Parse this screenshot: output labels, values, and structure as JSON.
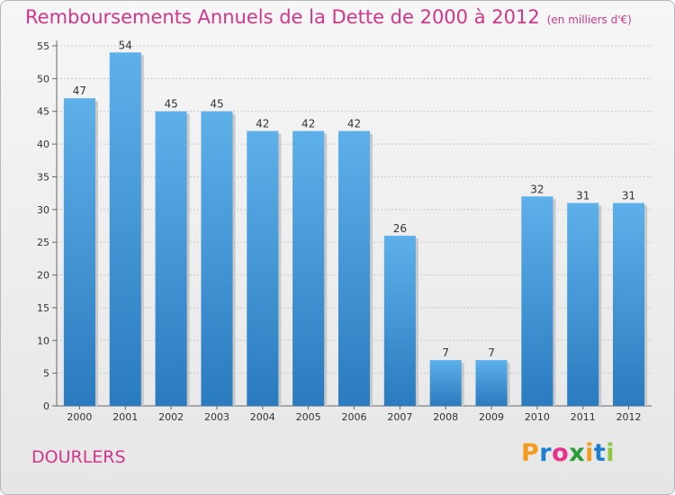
{
  "header": {
    "title": "Remboursements Annuels de la Dette de 2000 à 2012",
    "unit": "(en milliers d'€)"
  },
  "footer": {
    "commune": "DOURLERS",
    "logo_text": "Proxiti"
  },
  "colors": {
    "title": "#d0368c",
    "bar_light": "#5eb0ea",
    "bar_dark": "#2a7bbf",
    "logo": [
      "#f39b1c",
      "#1e7fd0",
      "#e8318a",
      "#2a9d3a",
      "#f39b1c",
      "#1e7fd0",
      "#8dc63f"
    ]
  },
  "chart_data": {
    "type": "bar",
    "title": "Remboursements Annuels de la Dette de 2000 à 2012",
    "categories": [
      "2000",
      "2001",
      "2002",
      "2003",
      "2004",
      "2005",
      "2006",
      "2007",
      "2008",
      "2009",
      "2010",
      "2011",
      "2012"
    ],
    "values": [
      47,
      54,
      45,
      45,
      42,
      42,
      42,
      26,
      7,
      7,
      32,
      31,
      31
    ],
    "ylim": [
      0,
      55
    ],
    "yticks": [
      0,
      5,
      10,
      15,
      20,
      25,
      30,
      35,
      40,
      45,
      50,
      55
    ],
    "grid": true,
    "data_labels": true
  }
}
